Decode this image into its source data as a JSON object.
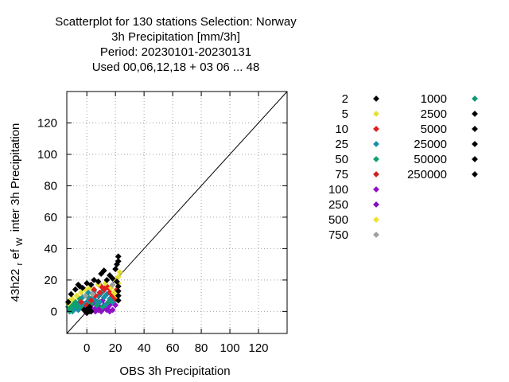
{
  "chart_data": {
    "type": "scatter",
    "title_lines": [
      "Scatterplot for  130 stations Selection: Norway",
      "3h Precipitation [mm/3h]",
      "Period: 20230101-20230131",
      "Used  00,06,12,18  + 03 06 ... 48"
    ],
    "xlabel": "OBS 3h Precipitation",
    "ylabel_main": "43h22",
    "ylabel_sub": "r",
    "ylabel_mid": "ef",
    "ylabel_sub2": "W",
    "ylabel_end": "inter 3h Precipitation",
    "xlim": [
      -14,
      140
    ],
    "ylim": [
      -14,
      140
    ],
    "xticks": [
      "0",
      "20",
      "40",
      "60",
      "80",
      "100",
      "120"
    ],
    "yticks": [
      "0",
      "20",
      "40",
      "60",
      "80",
      "100",
      "120"
    ],
    "grid": true,
    "diagonal": true,
    "legend_position": "right",
    "legend": [
      {
        "label": "2",
        "color": "#000000"
      },
      {
        "label": "5",
        "color": "#e8e030"
      },
      {
        "label": "10",
        "color": "#e02020"
      },
      {
        "label": "25",
        "color": "#1890a8"
      },
      {
        "label": "50",
        "color": "#10a070"
      },
      {
        "label": "75",
        "color": "#d02020"
      },
      {
        "label": "100",
        "color": "#9010c8"
      },
      {
        "label": "250",
        "color": "#8010b8"
      },
      {
        "label": "500",
        "color": "#f0e030"
      },
      {
        "label": "750",
        "color": "#a0a0a0"
      },
      {
        "label": "1000",
        "color": "#109878"
      },
      {
        "label": "2500",
        "color": "#000000"
      },
      {
        "label": "5000",
        "color": "#000000"
      },
      {
        "label": "25000",
        "color": "#000000"
      },
      {
        "label": "50000",
        "color": "#000000"
      },
      {
        "label": "250000",
        "color": "#000000"
      }
    ],
    "series": [
      {
        "color": "#9010c8",
        "points": [
          [
            2,
            0
          ],
          [
            4,
            1
          ],
          [
            6,
            0
          ],
          [
            8,
            1
          ],
          [
            10,
            0
          ],
          [
            12,
            2
          ],
          [
            14,
            1
          ],
          [
            16,
            0
          ],
          [
            0,
            3
          ],
          [
            3,
            4
          ],
          [
            6,
            2
          ],
          [
            9,
            3
          ],
          [
            12,
            4
          ],
          [
            15,
            3
          ],
          [
            18,
            1
          ],
          [
            5,
            6
          ],
          [
            11,
            7
          ],
          [
            -2,
            2
          ],
          [
            20,
            4
          ],
          [
            17,
            5
          ]
        ]
      },
      {
        "color": "#1890a8",
        "points": [
          [
            -10,
            0
          ],
          [
            -8,
            2
          ],
          [
            -6,
            1
          ],
          [
            -4,
            3
          ],
          [
            -2,
            5
          ],
          [
            0,
            6
          ],
          [
            2,
            8
          ],
          [
            4,
            9
          ],
          [
            6,
            7
          ],
          [
            8,
            10
          ],
          [
            10,
            12
          ],
          [
            12,
            9
          ],
          [
            14,
            11
          ],
          [
            16,
            8
          ],
          [
            18,
            6
          ],
          [
            -6,
            5
          ],
          [
            -3,
            9
          ],
          [
            1,
            12
          ],
          [
            5,
            13
          ],
          [
            9,
            6
          ],
          [
            13,
            4
          ],
          [
            -12,
            1
          ],
          [
            -9,
            4
          ]
        ]
      },
      {
        "color": "#10a070",
        "points": [
          [
            -12,
            0
          ],
          [
            -11,
            2
          ],
          [
            -10,
            4
          ],
          [
            -8,
            6
          ],
          [
            -7,
            3
          ],
          [
            -5,
            8
          ],
          [
            -3,
            2
          ],
          [
            0,
            10
          ],
          [
            3,
            5
          ],
          [
            7,
            4
          ],
          [
            11,
            3
          ],
          [
            15,
            6
          ],
          [
            -13,
            3
          ]
        ]
      },
      {
        "color": "#e02020",
        "points": [
          [
            0,
            4
          ],
          [
            3,
            7
          ],
          [
            6,
            10
          ],
          [
            9,
            12
          ],
          [
            12,
            14
          ],
          [
            14,
            16
          ],
          [
            16,
            12
          ],
          [
            18,
            10
          ],
          [
            20,
            8
          ],
          [
            15,
            15
          ],
          [
            10,
            16
          ],
          [
            5,
            14
          ],
          [
            -4,
            6
          ],
          [
            21,
            14
          ]
        ]
      },
      {
        "color": "#e8e030",
        "points": [
          [
            -13,
            5
          ],
          [
            -10,
            8
          ],
          [
            -7,
            10
          ],
          [
            -4,
            12
          ],
          [
            -1,
            14
          ],
          [
            2,
            15
          ],
          [
            8,
            17
          ],
          [
            13,
            18
          ],
          [
            17,
            15
          ],
          [
            19,
            12
          ],
          [
            21,
            10
          ],
          [
            22,
            18
          ],
          [
            22,
            22
          ],
          [
            23,
            25
          ],
          [
            20,
            20
          ],
          [
            -12,
            7
          ]
        ]
      },
      {
        "color": "#a0a0a0",
        "points": [
          [
            -1,
            10
          ],
          [
            4,
            11
          ],
          [
            18,
            17
          ]
        ]
      },
      {
        "color": "#000000",
        "points": [
          [
            -1,
            0
          ],
          [
            0,
            1
          ],
          [
            1,
            2
          ],
          [
            2,
            1
          ],
          [
            3,
            0
          ],
          [
            0,
            -1
          ],
          [
            -2,
            1
          ],
          [
            2,
            3
          ],
          [
            -11,
            11
          ],
          [
            -8,
            14
          ],
          [
            -6,
            17
          ],
          [
            -3,
            15
          ],
          [
            0,
            18
          ],
          [
            3,
            17
          ],
          [
            5,
            20
          ],
          [
            8,
            19
          ],
          [
            10,
            24
          ],
          [
            14,
            20
          ],
          [
            16,
            23
          ],
          [
            18,
            21
          ],
          [
            20,
            27
          ],
          [
            21,
            30
          ],
          [
            22,
            32
          ],
          [
            22,
            35
          ],
          [
            21,
            19
          ],
          [
            22,
            16
          ],
          [
            22,
            13
          ],
          [
            22,
            10
          ],
          [
            22,
            7
          ],
          [
            -5,
            16
          ],
          [
            12,
            26
          ],
          [
            -13,
            6
          ]
        ]
      }
    ]
  }
}
